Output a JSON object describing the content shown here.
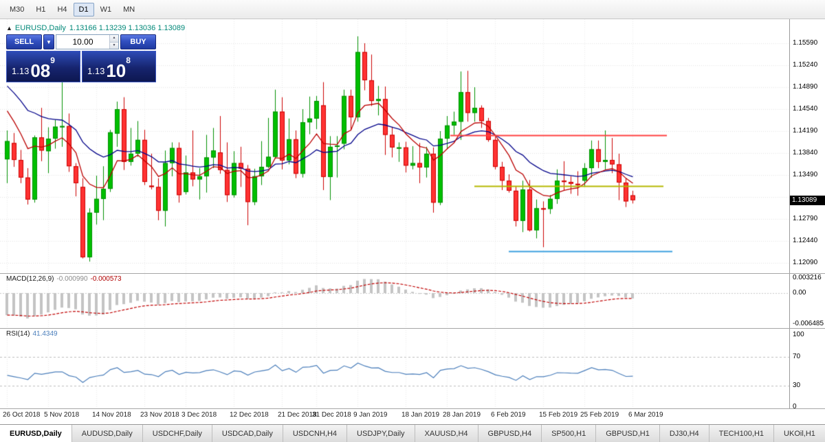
{
  "colors": {
    "bull": "#00bf00",
    "bull_border": "#008f00",
    "bear": "#ff3232",
    "bear_border": "#cc0000",
    "ma_fast": "#bb0000",
    "ma_slow": "#000089",
    "hline_red": "#ff4040",
    "hline_olive": "#b5b800",
    "hline_blue": "#3aa0e0",
    "macd_hist": "#c4c4c4",
    "macd_signal": "#c00000",
    "rsi_line": "#4a7ebb",
    "grid_h": "#e4e4e4",
    "grid_v": "#ececec",
    "badge_bg": "#000000",
    "badge_text": "#ffffff"
  },
  "toolbar": {
    "timeframes": [
      "M30",
      "H1",
      "H4",
      "D1",
      "W1",
      "MN"
    ],
    "active": "D1"
  },
  "chart_header": {
    "collapse": "▲",
    "symbol_period": "EURUSD,Daily",
    "ohlc": "1.13166 1.13239 1.13036 1.13089"
  },
  "trade_panel": {
    "sell_label": "SELL",
    "buy_label": "BUY",
    "volume": "10.00",
    "sell_price": {
      "prefix": "1.13",
      "big": "08",
      "sup": "9"
    },
    "buy_price": {
      "prefix": "1.13",
      "big": "10",
      "sup": "8"
    }
  },
  "macd_panel": {
    "name": "MACD(12,26,9)",
    "main": "-0.000990",
    "signal": "-0.000573"
  },
  "rsi_panel": {
    "name": "RSI(14)",
    "value": "41.4349"
  },
  "tabs": [
    {
      "label": "EURUSD,Daily",
      "active": true
    },
    {
      "label": "AUDUSD,Daily"
    },
    {
      "label": "USDCHF,Daily"
    },
    {
      "label": "USDCAD,Daily"
    },
    {
      "label": "USDCNH,H4"
    },
    {
      "label": "USDJPY,Daily"
    },
    {
      "label": "XAUUSD,H4"
    },
    {
      "label": "GBPUSD,H4"
    },
    {
      "label": "SP500,H1"
    },
    {
      "label": "GBPUSD,H1"
    },
    {
      "label": "DJ30,H4"
    },
    {
      "label": "TECH100,H1"
    },
    {
      "label": "UKOil,H1"
    }
  ],
  "chart_data": {
    "type": "candlestick",
    "symbol": "EURUSD",
    "timeframe": "Daily",
    "ohlc_display": {
      "open": "1.13166",
      "high": "1.13239",
      "low": "1.13036",
      "close": "1.13089"
    },
    "y_axis": {
      "labels": [
        "1.15590",
        "1.15240",
        "1.14890",
        "1.14540",
        "1.14190",
        "1.13840",
        "1.13490",
        "1.12790",
        "1.12440",
        "1.12090"
      ],
      "hidden_tick": 1.1314,
      "current": "1.13089"
    },
    "date_ticks": [
      {
        "label": "26 Oct 2018",
        "i": 0
      },
      {
        "label": "5 Nov 2018",
        "i": 6
      },
      {
        "label": "14 Nov 2018",
        "i": 13
      },
      {
        "label": "23 Nov 2018",
        "i": 20
      },
      {
        "label": "3 Dec 2018",
        "i": 26
      },
      {
        "label": "12 Dec 2018",
        "i": 33
      },
      {
        "label": "21 Dec 2018",
        "i": 40
      },
      {
        "label": "31 Dec 2018",
        "i": 45
      },
      {
        "label": "9 Jan 2019",
        "i": 51
      },
      {
        "label": "18 Jan 2019",
        "i": 58
      },
      {
        "label": "28 Jan 2019",
        "i": 64
      },
      {
        "label": "6 Feb 2019",
        "i": 71
      },
      {
        "label": "15 Feb 2019",
        "i": 78
      },
      {
        "label": "25 Feb 2019",
        "i": 84
      },
      {
        "label": "6 Mar 2019",
        "i": 91
      }
    ],
    "candles": [
      [
        1.1374,
        1.142,
        1.1336,
        1.1403
      ],
      [
        1.14,
        1.1416,
        1.1362,
        1.1373
      ],
      [
        1.1373,
        1.1389,
        1.1336,
        1.1345
      ],
      [
        1.1345,
        1.136,
        1.1302,
        1.131
      ],
      [
        1.131,
        1.1412,
        1.1305,
        1.1409
      ],
      [
        1.1409,
        1.1456,
        1.1371,
        1.1388
      ],
      [
        1.1387,
        1.1425,
        1.1352,
        1.1407
      ],
      [
        1.1407,
        1.1437,
        1.1391,
        1.1426
      ],
      [
        1.1426,
        1.15,
        1.1394,
        1.1427
      ],
      [
        1.1427,
        1.1447,
        1.1354,
        1.1363
      ],
      [
        1.1363,
        1.1368,
        1.1315,
        1.1336
      ],
      [
        1.133,
        1.1344,
        1.1216,
        1.1218
      ],
      [
        1.1218,
        1.1296,
        1.1211,
        1.1289
      ],
      [
        1.1289,
        1.1348,
        1.127,
        1.1311
      ],
      [
        1.1311,
        1.1363,
        1.1277,
        1.1327
      ],
      [
        1.1327,
        1.1421,
        1.1322,
        1.1417
      ],
      [
        1.1415,
        1.1466,
        1.1394,
        1.1454
      ],
      [
        1.1454,
        1.1473,
        1.1357,
        1.137
      ],
      [
        1.137,
        1.1424,
        1.1364,
        1.1383
      ],
      [
        1.1383,
        1.1435,
        1.1378,
        1.1405
      ],
      [
        1.1405,
        1.1421,
        1.1333,
        1.1338
      ],
      [
        1.1332,
        1.1383,
        1.1326,
        1.133
      ],
      [
        1.133,
        1.1344,
        1.1277,
        1.1292
      ],
      [
        1.1292,
        1.1388,
        1.1267,
        1.1368
      ],
      [
        1.1368,
        1.1401,
        1.1347,
        1.1392
      ],
      [
        1.1392,
        1.1401,
        1.1305,
        1.1317
      ],
      [
        1.1322,
        1.138,
        1.1318,
        1.1353
      ],
      [
        1.1353,
        1.142,
        1.1331,
        1.1342
      ],
      [
        1.1342,
        1.136,
        1.131,
        1.1347
      ],
      [
        1.1347,
        1.1413,
        1.1321,
        1.1377
      ],
      [
        1.1377,
        1.1424,
        1.136,
        1.1388
      ],
      [
        1.1385,
        1.1443,
        1.1351,
        1.1357
      ],
      [
        1.1357,
        1.1401,
        1.1306,
        1.1317
      ],
      [
        1.1317,
        1.1387,
        1.1313,
        1.1368
      ],
      [
        1.1368,
        1.1394,
        1.133,
        1.1359
      ],
      [
        1.1359,
        1.1365,
        1.1269,
        1.1306
      ],
      [
        1.1306,
        1.1359,
        1.1301,
        1.1347
      ],
      [
        1.1347,
        1.1403,
        1.1333,
        1.1362
      ],
      [
        1.1362,
        1.144,
        1.136,
        1.1378
      ],
      [
        1.1378,
        1.1485,
        1.1375,
        1.145
      ],
      [
        1.145,
        1.1473,
        1.1358,
        1.1372
      ],
      [
        1.1372,
        1.1439,
        1.1366,
        1.1406
      ],
      [
        1.1406,
        1.142,
        1.1344,
        1.1351
      ],
      [
        1.1351,
        1.1454,
        1.1345,
        1.1433
      ],
      [
        1.1433,
        1.1474,
        1.1414,
        1.1439
      ],
      [
        1.1439,
        1.1475,
        1.1422,
        1.1467
      ],
      [
        1.146,
        1.1497,
        1.1325,
        1.1346
      ],
      [
        1.1346,
        1.1411,
        1.1309,
        1.1394
      ],
      [
        1.1394,
        1.1411,
        1.1345,
        1.1396
      ],
      [
        1.1399,
        1.1485,
        1.139,
        1.1475
      ],
      [
        1.1475,
        1.1485,
        1.1421,
        1.1441
      ],
      [
        1.1441,
        1.157,
        1.1434,
        1.1545
      ],
      [
        1.1545,
        1.1559,
        1.1484,
        1.15
      ],
      [
        1.15,
        1.1541,
        1.1459,
        1.1467
      ],
      [
        1.1467,
        1.1491,
        1.1444,
        1.147
      ],
      [
        1.147,
        1.149,
        1.1381,
        1.1413
      ],
      [
        1.1413,
        1.1426,
        1.1377,
        1.1393
      ],
      [
        1.1393,
        1.1401,
        1.137,
        1.1393
      ],
      [
        1.1393,
        1.1402,
        1.1353,
        1.1364
      ],
      [
        1.1364,
        1.1395,
        1.1358,
        1.1368
      ],
      [
        1.1368,
        1.14,
        1.1336,
        1.1361
      ],
      [
        1.1361,
        1.1394,
        1.1345,
        1.1383
      ],
      [
        1.1383,
        1.1393,
        1.1289,
        1.1305
      ],
      [
        1.1305,
        1.1419,
        1.1301,
        1.1407
      ],
      [
        1.1407,
        1.1443,
        1.139,
        1.1428
      ],
      [
        1.1428,
        1.145,
        1.1413,
        1.1434
      ],
      [
        1.1434,
        1.1514,
        1.1405,
        1.1481
      ],
      [
        1.1481,
        1.1515,
        1.1434,
        1.1448
      ],
      [
        1.1448,
        1.1489,
        1.1434,
        1.1456
      ],
      [
        1.1456,
        1.146,
        1.1424,
        1.1435
      ],
      [
        1.1435,
        1.144,
        1.1402,
        1.1405
      ],
      [
        1.1405,
        1.141,
        1.1358,
        1.1362
      ],
      [
        1.1362,
        1.137,
        1.1325,
        1.134
      ],
      [
        1.134,
        1.135,
        1.1321,
        1.1324
      ],
      [
        1.1324,
        1.1331,
        1.1267,
        1.1276
      ],
      [
        1.1276,
        1.134,
        1.1258,
        1.1326
      ],
      [
        1.1326,
        1.1341,
        1.1259,
        1.1261
      ],
      [
        1.1261,
        1.131,
        1.1248,
        1.1296
      ],
      [
        1.1296,
        1.1307,
        1.1234,
        1.1295
      ],
      [
        1.1295,
        1.1317,
        1.1287,
        1.1311
      ],
      [
        1.1311,
        1.1358,
        1.1303,
        1.134
      ],
      [
        1.134,
        1.1371,
        1.1324,
        1.1338
      ],
      [
        1.1338,
        1.1347,
        1.1319,
        1.1335
      ],
      [
        1.1335,
        1.1355,
        1.1316,
        1.1334
      ],
      [
        1.134,
        1.1368,
        1.133,
        1.136
      ],
      [
        1.136,
        1.1404,
        1.1345,
        1.139
      ],
      [
        1.139,
        1.1404,
        1.136,
        1.137
      ],
      [
        1.137,
        1.142,
        1.1358,
        1.1373
      ],
      [
        1.1373,
        1.1408,
        1.1352,
        1.1366
      ],
      [
        1.1366,
        1.1383,
        1.1309,
        1.1337
      ],
      [
        1.1337,
        1.1344,
        1.1298,
        1.1307
      ],
      [
        1.13166,
        1.13239,
        1.13036,
        1.13089
      ]
    ],
    "overlays": {
      "moving_averages": [
        {
          "name": "ma-slow",
          "type": "ema",
          "period": 20,
          "seed": 1.15,
          "color_key": "ma_slow"
        },
        {
          "name": "ma-fast",
          "type": "ema",
          "period": 8,
          "seed": 1.1465,
          "color_key": "ma_fast"
        }
      ],
      "hlines": [
        {
          "price": 1.1412,
          "from_i": 64.5,
          "to_i": 96.0,
          "color_key": "hline_red"
        },
        {
          "price": 1.1332,
          "from_i": 68.0,
          "to_i": 95.5,
          "color_key": "hline_olive"
        },
        {
          "price": 1.1228,
          "from_i": 73.0,
          "to_i": 96.8,
          "color_key": "hline_blue"
        }
      ]
    },
    "indicators": {
      "macd": {
        "params": {
          "fast": 12,
          "slow": 26,
          "signal": 9,
          "seed_fast": 1.143,
          "seed_slow": 1.1478
        },
        "value_main": "-0.000990",
        "value_signal": "-0.000573",
        "axis": [
          {
            "label": "0.003216",
            "v": 0.003216
          },
          {
            "label": "0.00",
            "v": 0
          },
          {
            "label": "-0.006485",
            "v": -0.006485
          }
        ]
      },
      "rsi": {
        "period": 14,
        "value": "41.4349",
        "levels": [
          100,
          70,
          30,
          0
        ],
        "dashed_levels": [
          70,
          30
        ],
        "seed_gain": 0.0022,
        "seed_loss": 0.0028
      }
    }
  }
}
